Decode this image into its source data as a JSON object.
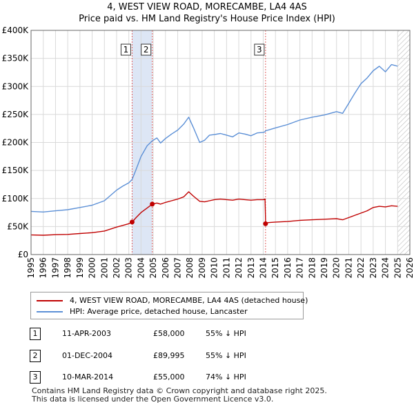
{
  "header": {
    "title": "4, WEST VIEW ROAD, MORECAMBE, LA4 4AS",
    "subtitle": "Price paid vs. HM Land Registry's House Price Index (HPI)"
  },
  "colors": {
    "property": "#c00000",
    "hpi": "#5b8fd6",
    "shade": "#dde6f5",
    "grid": "#d9d9d9",
    "marker_line": "#e06060"
  },
  "chart_data": {
    "type": "line",
    "title": "4, WEST VIEW ROAD, MORECAMBE, LA4 4AS",
    "xlabel": "",
    "ylabel": "",
    "xlim": [
      1995,
      2026
    ],
    "ylim": [
      0,
      400000
    ],
    "y_ticks": [
      0,
      50000,
      100000,
      150000,
      200000,
      250000,
      300000,
      350000,
      400000
    ],
    "y_tick_labels": [
      "£0",
      "£50K",
      "£100K",
      "£150K",
      "£200K",
      "£250K",
      "£300K",
      "£350K",
      "£400K"
    ],
    "x_ticks": [
      "1995",
      "1996",
      "1997",
      "1998",
      "1999",
      "2000",
      "2001",
      "2002",
      "2003",
      "2004",
      "2005",
      "2006",
      "2007",
      "2008",
      "2009",
      "2010",
      "2011",
      "2012",
      "2013",
      "2014",
      "2015",
      "2016",
      "2017",
      "2018",
      "2019",
      "2020",
      "2021",
      "2022",
      "2023",
      "2024",
      "2025",
      "2026"
    ],
    "grid": true,
    "shaded_ranges": [
      [
        2003.27,
        2004.92
      ]
    ],
    "hatched_from": 2025.0,
    "series": [
      {
        "name": "4, WEST VIEW ROAD, MORECAMBE, LA4 4AS (detached house)",
        "color": "#c00000",
        "x": [
          1995.0,
          1996.0,
          1997.0,
          1998.0,
          1999.0,
          2000.0,
          2001.0,
          2002.0,
          2002.5,
          2003.0,
          2003.27,
          2003.6,
          2004.0,
          2004.5,
          2004.92,
          2005.3,
          2005.6,
          2006.0,
          2006.5,
          2007.0,
          2007.5,
          2007.9,
          2008.3,
          2008.8,
          2009.2,
          2009.6,
          2010.0,
          2010.5,
          2011.0,
          2011.5,
          2012.0,
          2012.5,
          2013.0,
          2013.5,
          2014.0,
          2014.15,
          2014.2,
          2014.4,
          2015.0,
          2016.0,
          2017.0,
          2018.0,
          2019.0,
          2020.0,
          2020.5,
          2021.0,
          2021.5,
          2022.0,
          2022.5,
          2023.0,
          2023.5,
          2024.0,
          2024.5,
          2025.0
        ],
        "values": [
          35000,
          34500,
          35500,
          36000,
          37500,
          39000,
          42000,
          49000,
          52000,
          55000,
          58000,
          66000,
          75000,
          83000,
          89995,
          92000,
          90000,
          93000,
          96000,
          99000,
          103000,
          112000,
          104000,
          95000,
          94000,
          96000,
          98000,
          99000,
          98000,
          97000,
          99000,
          98000,
          97000,
          98000,
          98000,
          99000,
          55000,
          57000,
          58000,
          59000,
          61000,
          62000,
          63000,
          64000,
          62000,
          66000,
          70000,
          74000,
          78000,
          84000,
          86000,
          85000,
          87000,
          86000
        ]
      },
      {
        "name": "HPI: Average price, detached house, Lancaster",
        "color": "#5b8fd6",
        "x": [
          1995.0,
          1996.0,
          1997.0,
          1998.0,
          1999.0,
          2000.0,
          2001.0,
          2002.0,
          2002.5,
          2003.0,
          2003.27,
          2003.6,
          2004.0,
          2004.5,
          2004.92,
          2005.3,
          2005.6,
          2006.0,
          2006.5,
          2007.0,
          2007.5,
          2007.9,
          2008.3,
          2008.8,
          2009.2,
          2009.6,
          2010.0,
          2010.5,
          2011.0,
          2011.5,
          2012.0,
          2012.5,
          2013.0,
          2013.5,
          2014.0,
          2014.15,
          2014.2,
          2014.4,
          2015.0,
          2016.0,
          2017.0,
          2018.0,
          2019.0,
          2020.0,
          2020.5,
          2021.0,
          2021.5,
          2022.0,
          2022.5,
          2023.0,
          2023.5,
          2024.0,
          2024.5,
          2025.0
        ],
        "values": [
          77000,
          76000,
          78000,
          80000,
          84000,
          88000,
          96000,
          115000,
          122000,
          128000,
          134000,
          152000,
          175000,
          194000,
          203000,
          208000,
          199000,
          207000,
          215000,
          222000,
          233000,
          245000,
          226000,
          200000,
          204000,
          213000,
          214000,
          216000,
          213000,
          210000,
          217000,
          215000,
          212000,
          217000,
          218000,
          219000,
          221000,
          222000,
          226000,
          232000,
          240000,
          245000,
          249000,
          255000,
          252000,
          270000,
          288000,
          305000,
          315000,
          328000,
          336000,
          326000,
          339000,
          336000
        ]
      }
    ],
    "markers": [
      {
        "label": "1",
        "x": 2003.27,
        "y": 58000
      },
      {
        "label": "2",
        "x": 2004.92,
        "y": 89995
      },
      {
        "label": "3",
        "x": 2014.19,
        "y": 55000
      }
    ]
  },
  "legend": {
    "items": [
      {
        "label": "4, WEST VIEW ROAD, MORECAMBE, LA4 4AS (detached house)",
        "color": "#c00000"
      },
      {
        "label": "HPI: Average price, detached house, Lancaster",
        "color": "#5b8fd6"
      }
    ]
  },
  "sales": [
    {
      "num": "1",
      "date": "11-APR-2003",
      "price": "£58,000",
      "hpi": "55% ↓ HPI"
    },
    {
      "num": "2",
      "date": "01-DEC-2004",
      "price": "£89,995",
      "hpi": "55% ↓ HPI"
    },
    {
      "num": "3",
      "date": "10-MAR-2014",
      "price": "£55,000",
      "hpi": "74% ↓ HPI"
    }
  ],
  "footer": {
    "line1": "Contains HM Land Registry data © Crown copyright and database right 2025.",
    "line2": "This data is licensed under the Open Government Licence v3.0."
  }
}
